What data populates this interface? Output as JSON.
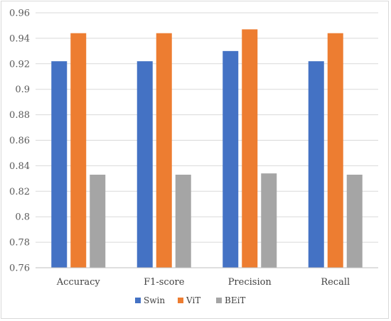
{
  "chart_data": {
    "type": "bar",
    "title": "",
    "xlabel": "",
    "ylabel": "",
    "categories": [
      "Accuracy",
      "F1-score",
      "Precision",
      "Recall"
    ],
    "series": [
      {
        "name": "Swin",
        "color": "#4472c4",
        "values": [
          0.922,
          0.922,
          0.93,
          0.922
        ]
      },
      {
        "name": "ViT",
        "color": "#ed7d31",
        "values": [
          0.944,
          0.944,
          0.947,
          0.944
        ]
      },
      {
        "name": "BEiT",
        "color": "#a5a5a5",
        "values": [
          0.833,
          0.833,
          0.834,
          0.833
        ]
      }
    ],
    "ylim": [
      0.76,
      0.96
    ],
    "yticks": [
      "0.76",
      "0.78",
      "0.8",
      "0.82",
      "0.84",
      "0.86",
      "0.88",
      "0.9",
      "0.92",
      "0.94",
      "0.96"
    ],
    "grid": true,
    "legend_position": "bottom"
  }
}
